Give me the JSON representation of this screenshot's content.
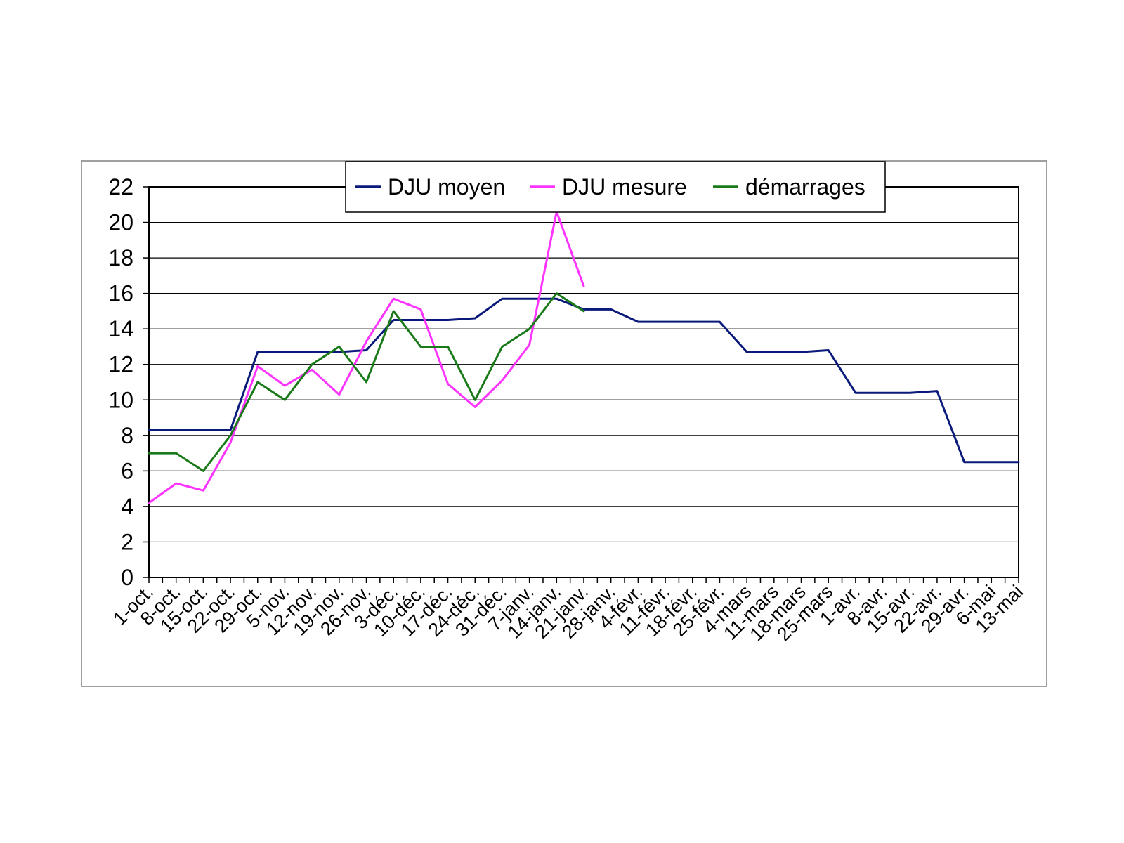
{
  "chart_data": {
    "type": "line",
    "title": "",
    "xlabel": "",
    "ylabel": "",
    "ylim": [
      0,
      22
    ],
    "yticks": [
      0,
      2,
      4,
      6,
      8,
      10,
      12,
      14,
      16,
      18,
      20,
      22
    ],
    "grid": true,
    "legend_placement": "top",
    "categories": [
      "1-oct.",
      "8-oct.",
      "15-oct.",
      "22-oct.",
      "29-oct.",
      "5-nov.",
      "12-nov.",
      "19-nov.",
      "26-nov.",
      "3-déc.",
      "10-déc.",
      "17-déc.",
      "24-déc.",
      "31-déc.",
      "7-janv.",
      "14-janv.",
      "21-janv.",
      "28-janv.",
      "4-févr.",
      "11-févr.",
      "18-févr.",
      "25-févr.",
      "4-mars",
      "11-mars",
      "18-mars",
      "25-mars",
      "1-avr.",
      "8-avr.",
      "15-avr.",
      "22-avr.",
      "29-avr.",
      "6-mai",
      "13-mai"
    ],
    "series": [
      {
        "name": "DJU moyen",
        "color": "#0a1a7a",
        "values": [
          8.3,
          8.3,
          8.3,
          8.3,
          12.7,
          12.7,
          12.7,
          12.7,
          12.8,
          14.5,
          14.5,
          14.5,
          14.6,
          15.7,
          15.7,
          15.7,
          15.1,
          15.1,
          14.4,
          14.4,
          14.4,
          14.4,
          12.7,
          12.7,
          12.7,
          12.8,
          10.4,
          10.4,
          10.4,
          10.5,
          6.5,
          6.5,
          6.5
        ]
      },
      {
        "name": "DJU mesure",
        "color": "#ff33ff",
        "values": [
          4.2,
          5.3,
          4.9,
          7.6,
          11.9,
          10.8,
          11.7,
          10.3,
          13.3,
          15.7,
          15.1,
          10.9,
          9.6,
          11.1,
          13.1,
          20.6,
          16.4,
          null,
          null,
          null,
          null,
          null,
          null,
          null,
          null,
          null,
          null,
          null,
          null,
          null,
          null,
          null,
          null
        ]
      },
      {
        "name": "démarrages",
        "color": "#1a7a1a",
        "values": [
          7,
          7,
          6,
          8,
          11,
          10,
          12,
          13,
          11,
          15,
          13,
          13,
          10,
          13,
          14,
          16,
          15,
          null,
          null,
          null,
          null,
          null,
          null,
          null,
          null,
          null,
          null,
          null,
          null,
          null,
          null,
          null,
          null
        ]
      }
    ]
  }
}
